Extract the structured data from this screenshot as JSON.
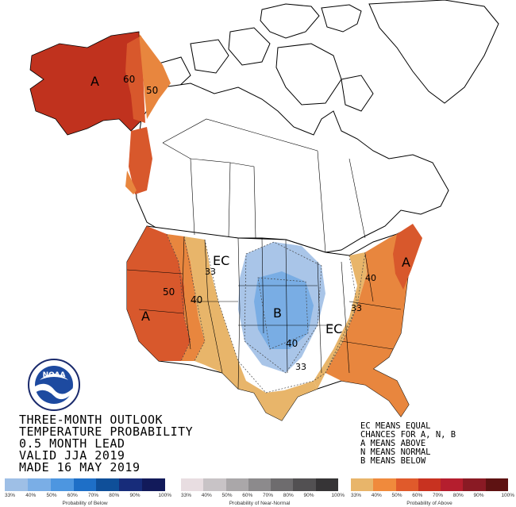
{
  "map_labels": {
    "alaska_category": "A",
    "alaska_60": "60",
    "alaska_50": "50",
    "west_category": "A",
    "west_50": "50",
    "west_40": "40",
    "west_33": "33",
    "ec_west": "EC",
    "central_category": "B",
    "central_40": "40",
    "central_33": "33",
    "ec_east": "EC",
    "east_33": "33",
    "east_40": "40",
    "northeast_category": "A"
  },
  "title": {
    "line1": "THREE-MONTH OUTLOOK",
    "line2": "TEMPERATURE PROBABILITY",
    "line3": "0.5 MONTH LEAD",
    "line4": "VALID JJA 2019",
    "line5": "MADE 16 MAY 2019"
  },
  "ec_note": {
    "line1": "EC MEANS EQUAL",
    "line2": "CHANCES FOR A, N, B",
    "line3": "A MEANS ABOVE",
    "line4": "N MEANS NORMAL",
    "line5": "B MEANS BELOW"
  },
  "logo": {
    "text": "NOAA",
    "ring_text": "NATIONAL OCEANIC AND ATMOSPHERIC ADMINISTRATION · U.S. DEPARTMENT OF COMMERCE"
  },
  "legend": {
    "below": {
      "label": "Probability of Below",
      "ticks": [
        "33%",
        "40%",
        "50%",
        "60%",
        "70%",
        "80%",
        "90%",
        "100%"
      ],
      "colors": [
        "#9ebfe6",
        "#7aaee6",
        "#4d96e0",
        "#1e6fc7",
        "#0f4f99",
        "#172c7a",
        "#121a5a"
      ]
    },
    "normal": {
      "label": "Probability of Near-Normal",
      "ticks": [
        "33%",
        "40%",
        "50%",
        "60%",
        "70%",
        "80%",
        "90%",
        "100%"
      ],
      "colors": [
        "#e8dde1",
        "#c8c3c6",
        "#aaa7a9",
        "#8c8a8c",
        "#6e6c6e",
        "#525052",
        "#363436"
      ]
    },
    "above": {
      "label": "Probability of Above",
      "ticks": [
        "33%",
        "40%",
        "50%",
        "60%",
        "70%",
        "80%",
        "90%",
        "100%"
      ],
      "colors": [
        "#e8b56a",
        "#f08a3c",
        "#e05a2b",
        "#c83220",
        "#b51e2e",
        "#8a1a24",
        "#5e1212"
      ]
    }
  },
  "colors": {
    "above_33": "#e8b56a",
    "above_40": "#e8863e",
    "above_50": "#d8582c",
    "above_60": "#c0321e",
    "below_33": "#a9c5e8",
    "below_40": "#79ade4"
  }
}
